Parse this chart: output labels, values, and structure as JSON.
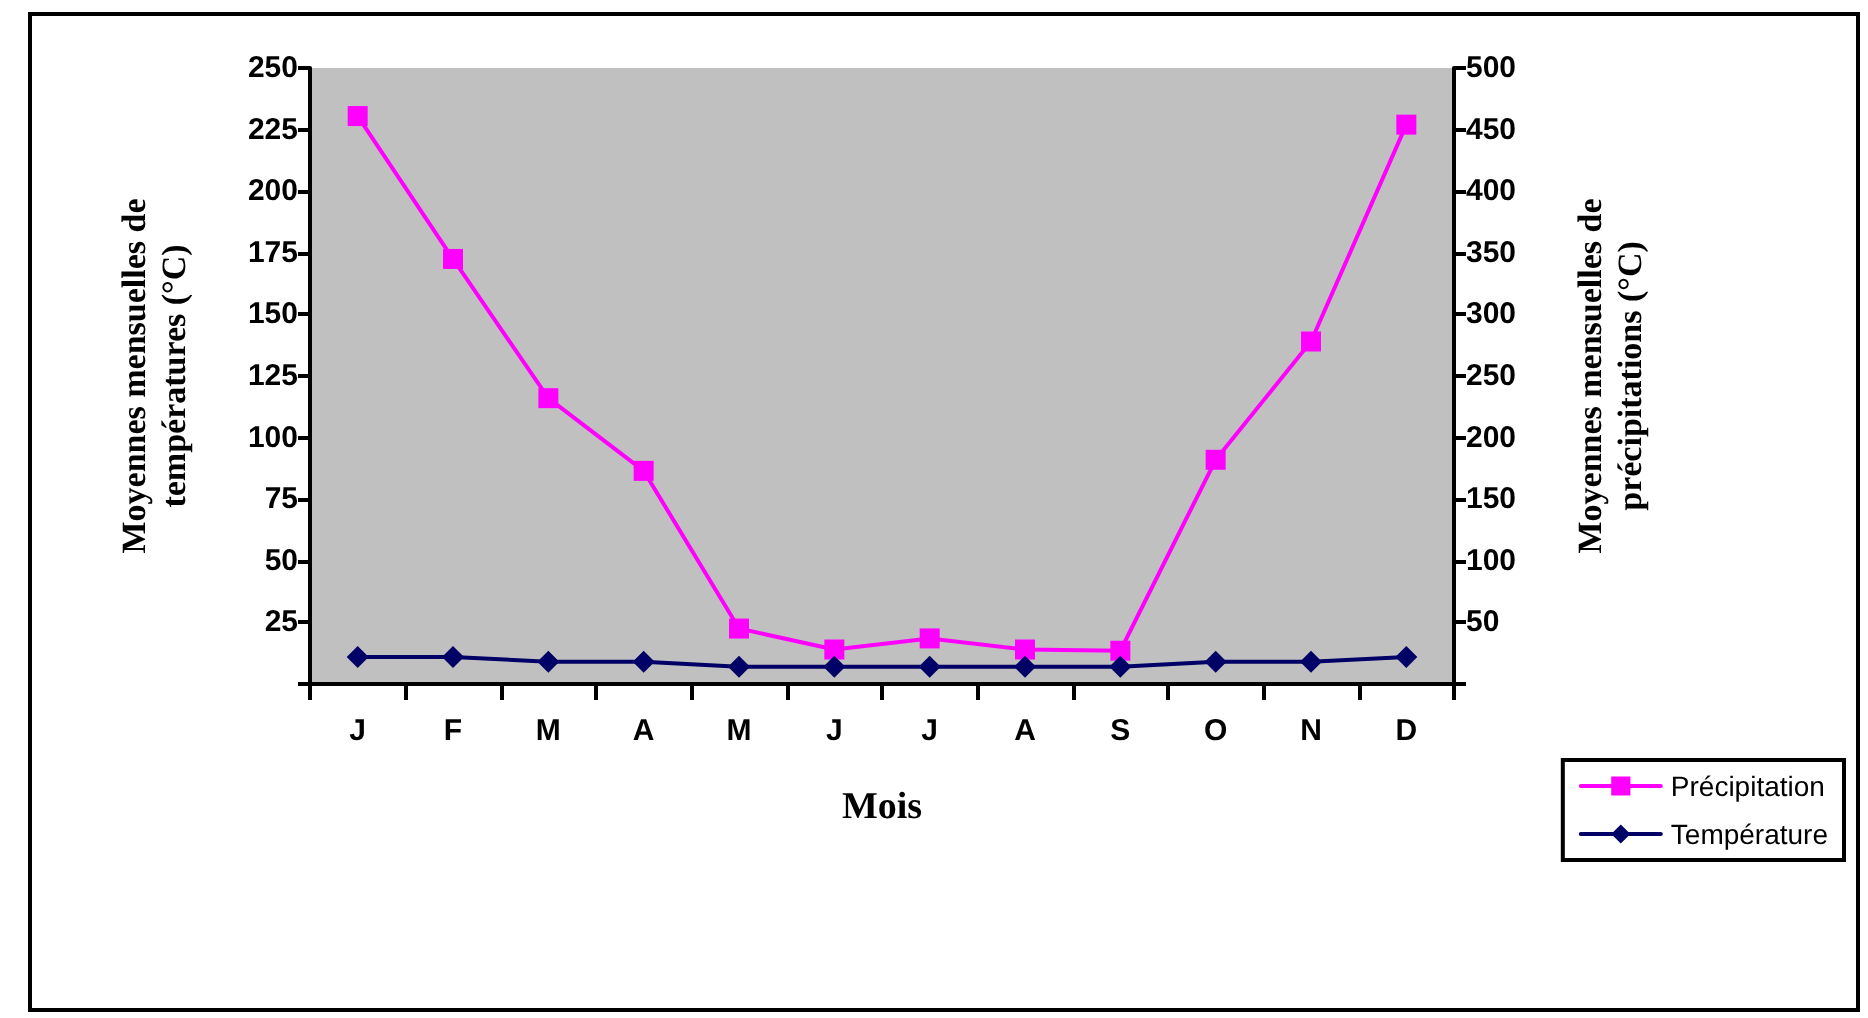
{
  "chart_data": {
    "type": "line",
    "xlabel": "Mois",
    "ylabel": "Moyennes mensuelles de\ntempératures (°C)",
    "y2label": "Moyennes mensuelles de\nprécipitations (°C)",
    "categories": [
      "J",
      "F",
      "M",
      "A",
      "M",
      "J",
      "J",
      "A",
      "S",
      "O",
      "N",
      "D"
    ],
    "series": [
      {
        "name": "Précipitation",
        "color": "#ff00ff",
        "marker": "square",
        "axis": "y2",
        "values": [
          461,
          345,
          232,
          173,
          45,
          28,
          37,
          28,
          27,
          182,
          278,
          454
        ]
      },
      {
        "name": "Température",
        "color": "#000066",
        "marker": "diamond",
        "values": [
          11,
          11,
          9,
          9,
          7,
          7,
          7,
          7,
          7,
          9,
          9,
          11
        ]
      }
    ],
    "ylim": [
      0,
      250
    ],
    "yticks": [
      {
        "value": 0,
        "label": null
      },
      25,
      50,
      75,
      100,
      125,
      150,
      175,
      200,
      225,
      250
    ],
    "y2lim": [
      0,
      500
    ],
    "y2ticks": [
      {
        "value": 0,
        "label": null
      },
      50,
      100,
      150,
      200,
      250,
      300,
      350,
      400,
      450,
      500
    ],
    "grid": false,
    "legend": "bottom right",
    "line_style": "solid"
  }
}
